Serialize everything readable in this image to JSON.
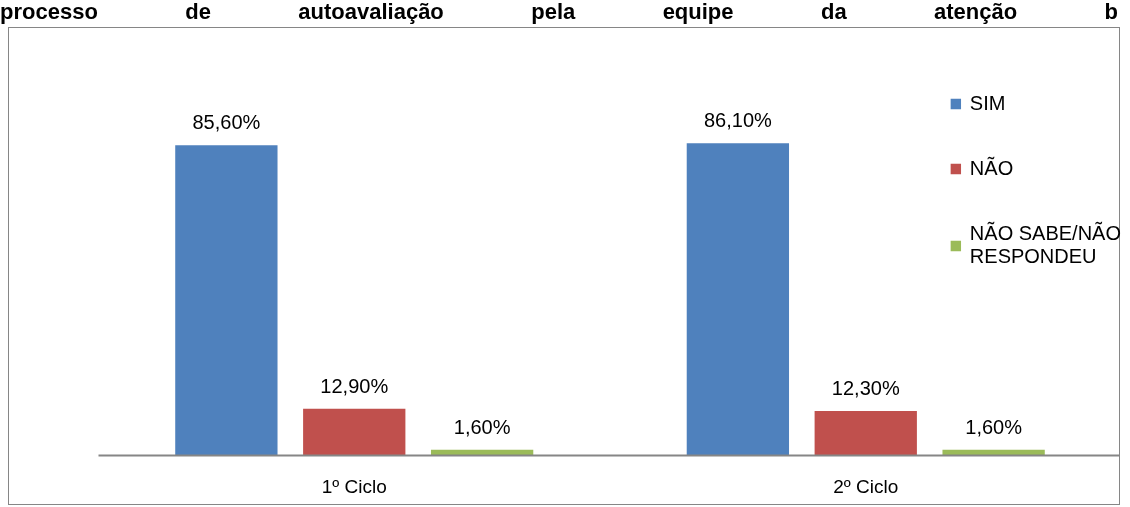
{
  "chart_data": {
    "type": "bar",
    "title": "processo de autoavaliação pela equipe da atenção b",
    "categories": [
      "1º Ciclo",
      "2º Ciclo"
    ],
    "series": [
      {
        "name": "SIM",
        "color": "#4f81bd",
        "values": [
          85.6,
          86.1
        ],
        "value_labels": [
          "85,60%",
          "86,10%"
        ]
      },
      {
        "name": "NÃO",
        "color": "#c0504d",
        "values": [
          12.9,
          12.3
        ],
        "value_labels": [
          "12,90%",
          "12,30%"
        ]
      },
      {
        "name": "NÃO SABE/NÃO RESPONDEU",
        "color": "#9bbb59",
        "values": [
          1.6,
          1.6
        ],
        "value_labels": [
          "1,60%",
          "1,60%"
        ]
      }
    ],
    "tick_labels": "x",
    "legend": "top right"
  }
}
